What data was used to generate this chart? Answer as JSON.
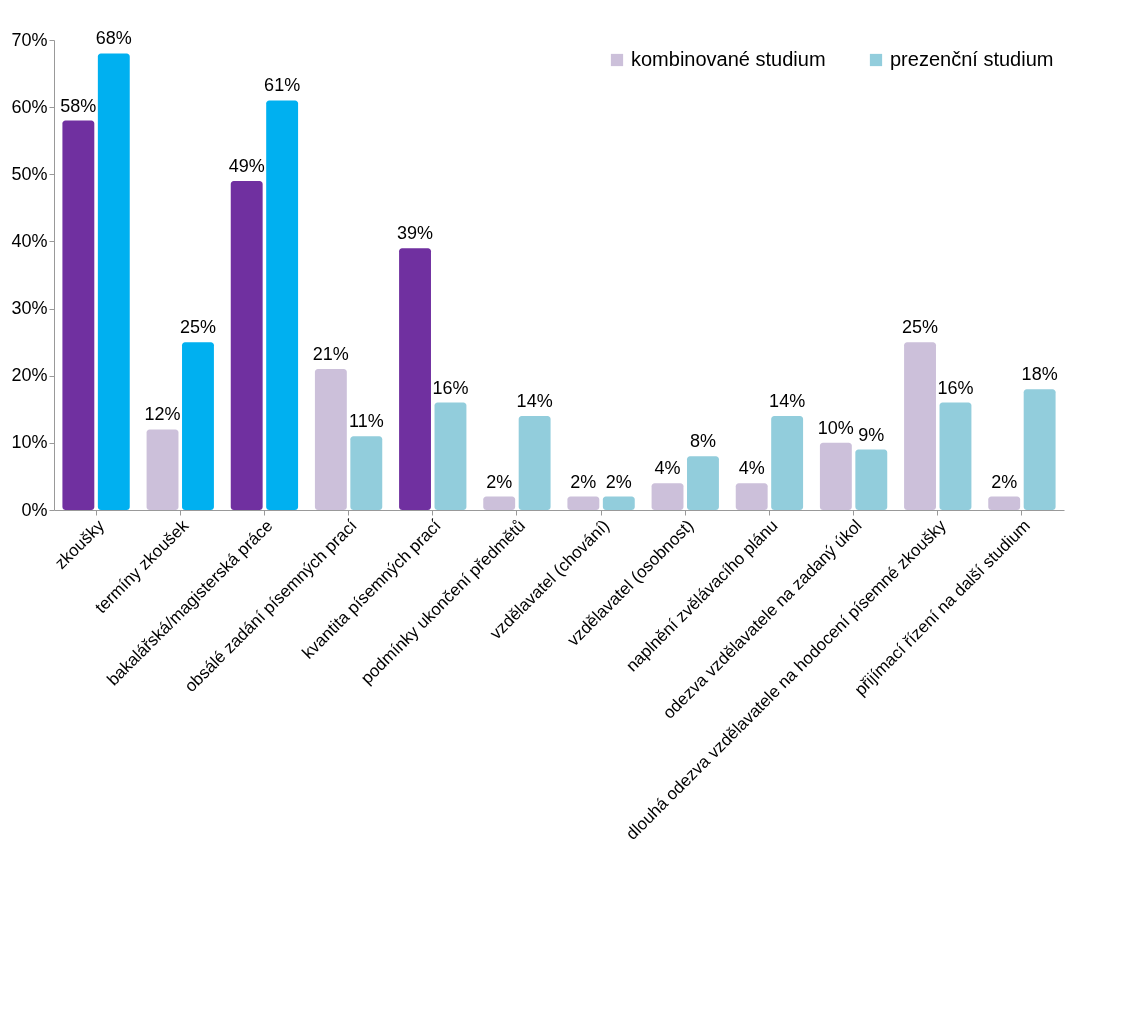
{
  "chart_data": {
    "type": "bar",
    "categories": [
      "zkoušky",
      "termíny zkoušek",
      "bakalářská/magisterská práce",
      "obsálé zadání písemných prací",
      "kvantita písemných prací",
      "podmínky ukončení předmětů",
      "vzdělavatel (chování)",
      "vzdělavatel (osobnost)",
      "naplnění zvělávacího plánu",
      "odezva vzdělavatele na zadaný úkol",
      "dlouhá odezva vzdělavatele na hodocení písemné zkoušky",
      "přijímací řízení na další studium"
    ],
    "series": [
      {
        "name": "kombinované studium",
        "color": "#ccc0da",
        "colors": [
          "#7030a0",
          "#ccc0da",
          "#7030a0",
          "#ccc0da",
          "#7030a0",
          "#ccc0da",
          "#ccc0da",
          "#ccc0da",
          "#ccc0da",
          "#ccc0da",
          "#ccc0da",
          "#ccc0da"
        ],
        "values": [
          58,
          12,
          49,
          21,
          39,
          2,
          2,
          4,
          4,
          10,
          25,
          2
        ],
        "value_labels": [
          "58%",
          "12%",
          "49%",
          "21%",
          "39%",
          "2%",
          "2%",
          "4%",
          "4%",
          "10%",
          "25%",
          "2%"
        ]
      },
      {
        "name": "prezenční studium",
        "color": "#92cddc",
        "colors": [
          "#00b0f0",
          "#00b0f0",
          "#00b0f0",
          "#92cddc",
          "#92cddc",
          "#92cddc",
          "#92cddc",
          "#92cddc",
          "#92cddc",
          "#92cddc",
          "#92cddc",
          "#92cddc"
        ],
        "values": [
          68,
          25,
          61,
          11,
          16,
          14,
          2,
          8,
          14,
          9,
          16,
          18
        ],
        "value_labels": [
          "68%",
          "25%",
          "61%",
          "11%",
          "16%",
          "14%",
          "2%",
          "8%",
          "14%",
          "9%",
          "16%",
          "18%"
        ]
      }
    ],
    "ylim": [
      0,
      70
    ],
    "yticks": [
      {
        "value": 0,
        "label": "0%"
      },
      {
        "value": 10,
        "label": "10%"
      },
      {
        "value": 20,
        "label": "20%"
      },
      {
        "value": 30,
        "label": "30%"
      },
      {
        "value": 40,
        "label": "40%"
      },
      {
        "value": 50,
        "label": "50%"
      },
      {
        "value": 60,
        "label": "60%"
      },
      {
        "value": 70,
        "label": "70%"
      }
    ],
    "legend": "top right"
  }
}
